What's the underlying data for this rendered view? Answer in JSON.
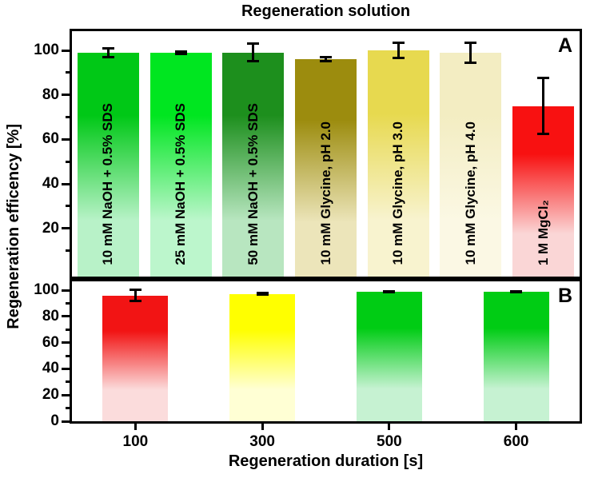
{
  "figure": {
    "title": "Regeneration solution",
    "y_axis_label": "Regeneration efficency [%]",
    "x_axis_label": "Regeneration duration [s]"
  },
  "colors": {
    "axis": "#000000",
    "error_bar": "#000000",
    "background": "#ffffff"
  },
  "chart_data": [
    {
      "type": "bar",
      "panel_label": "A",
      "title": "Regeneration solution",
      "ylabel": "Regeneration efficency [%]",
      "ylim": [
        0,
        108
      ],
      "grid": false,
      "yticks": [
        20,
        40,
        60,
        80,
        100
      ],
      "yticks_minor": [
        10,
        30,
        50,
        70,
        90
      ],
      "categories": [
        "10 mM NaOH + 0.5% SDS",
        "25 mM NaOH + 0.5% SDS",
        "50 mM NaOH + 0.5% SDS",
        "10 mM Glycine, pH 2.0",
        "10 mM Glycine, pH 3.0",
        "10 mM Glycine, pH 4.0",
        "1 M MgCl₂"
      ],
      "series": [
        {
          "name": "Regeneration efficiency [%]",
          "values": [
            99,
            99,
            99,
            96,
            100,
            99,
            75
          ],
          "errors": [
            2.5,
            1,
            4.5,
            1.5,
            4,
            5,
            13
          ]
        }
      ],
      "bar_colors_top": [
        "#00c816",
        "#00e620",
        "#1d8f1d",
        "#9c8c0e",
        "#e7d94f",
        "#f3edc2",
        "#f81111"
      ],
      "bar_colors_bottom": [
        "#b8f2c8",
        "#bcf6cc",
        "#b8e6c0",
        "#ece5ba",
        "#f8f3cf",
        "#fbf8e4",
        "#fad6d6"
      ],
      "category_label_position": "inside-vertical"
    },
    {
      "type": "bar",
      "panel_label": "B",
      "xlabel": "Regeneration duration [s]",
      "ylim": [
        0,
        109
      ],
      "grid": false,
      "yticks": [
        0,
        20,
        40,
        60,
        80,
        100
      ],
      "yticks_minor": [
        10,
        30,
        50,
        70,
        90
      ],
      "categories": [
        "100",
        "300",
        "500",
        "600"
      ],
      "series": [
        {
          "name": "Regeneration efficiency [%]",
          "values": [
            96,
            97,
            99,
            99
          ],
          "errors": [
            5,
            1.5,
            1,
            1
          ]
        }
      ],
      "bar_colors_top": [
        "#f21414",
        "#ffff00",
        "#00cc14",
        "#00cc14"
      ],
      "bar_colors_bottom": [
        "#fbdcdc",
        "#ffffd4",
        "#c6f2d2",
        "#c6f2d2"
      ],
      "category_label_position": "below-axis"
    }
  ]
}
